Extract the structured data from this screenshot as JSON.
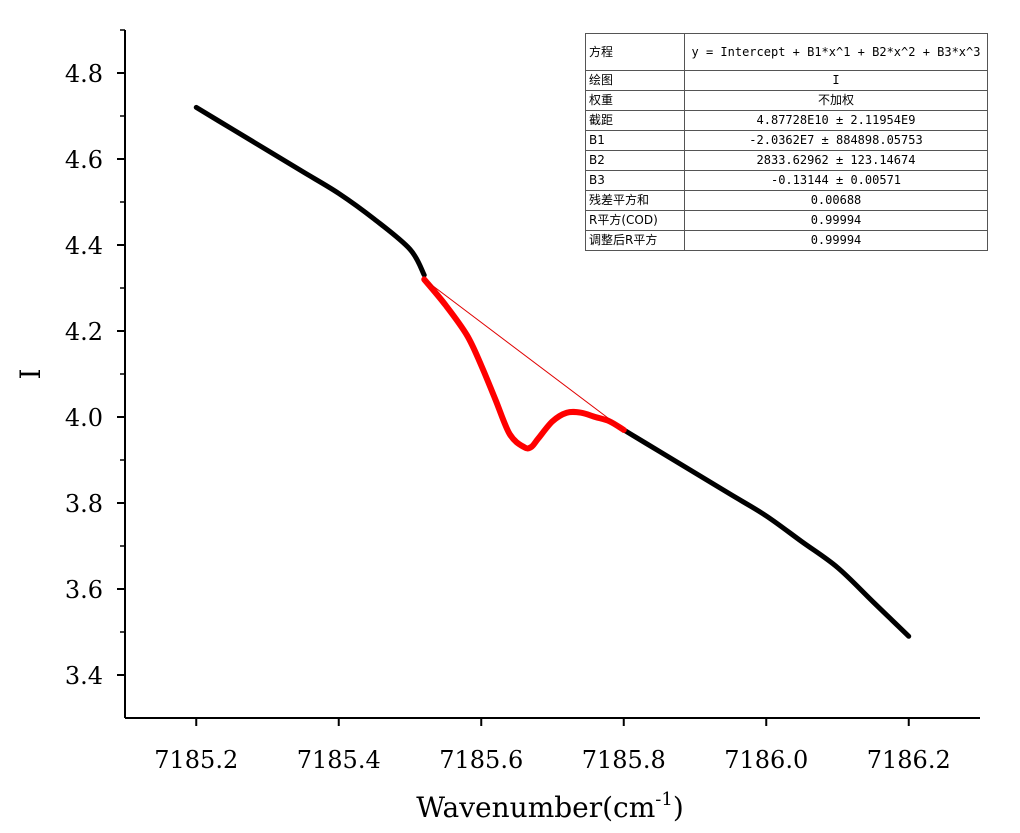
{
  "chart_data": {
    "type": "line",
    "title": "",
    "xlabel": "Wavenumber(cm",
    "xlabel_sup": "-1",
    "xlabel_close": ")",
    "ylabel": "I",
    "xlim": [
      7185.1,
      7186.3
    ],
    "ylim": [
      3.3,
      4.9
    ],
    "xticks": [
      7185.2,
      7185.4,
      7185.6,
      7185.8,
      7186.0,
      7186.2
    ],
    "xtick_labels": [
      "7185.2",
      "7185.4",
      "7185.6",
      "7185.8",
      "7186.0",
      "7186.2"
    ],
    "yticks": [
      3.4,
      3.6,
      3.8,
      4.0,
      4.2,
      4.4,
      4.6,
      4.8
    ],
    "ytick_labels": [
      "3.4",
      "3.6",
      "3.8",
      "4.0",
      "4.2",
      "4.4",
      "4.6",
      "4.8"
    ],
    "grid": false,
    "series": [
      {
        "role": "data",
        "color": "#000000",
        "x": [
          7185.2,
          7185.25,
          7185.3,
          7185.35,
          7185.4,
          7185.45,
          7185.5,
          7185.52,
          7185.8,
          7185.85,
          7185.9,
          7185.95,
          7186.0,
          7186.05,
          7186.1,
          7186.15,
          7186.2
        ],
        "y": [
          4.72,
          4.67,
          4.62,
          4.57,
          4.52,
          4.46,
          4.39,
          4.33,
          3.97,
          3.92,
          3.87,
          3.82,
          3.77,
          3.71,
          3.65,
          3.57,
          3.49
        ]
      },
      {
        "role": "highlight",
        "color": "#ff0000",
        "x": [
          7185.52,
          7185.55,
          7185.58,
          7185.6,
          7185.62,
          7185.64,
          7185.66,
          7185.67,
          7185.68,
          7185.7,
          7185.72,
          7185.74,
          7185.76,
          7185.78,
          7185.8
        ],
        "y": [
          4.32,
          4.26,
          4.19,
          4.12,
          4.04,
          3.96,
          3.93,
          3.93,
          3.95,
          3.99,
          4.01,
          4.01,
          4.0,
          3.99,
          3.97
        ]
      },
      {
        "role": "baseline-fit",
        "color": "#e00000",
        "x": [
          7185.2,
          7185.3,
          7185.4,
          7185.5,
          7185.6,
          7185.7,
          7185.8,
          7185.9,
          7186.0,
          7186.1,
          7186.2
        ],
        "y": [
          4.72,
          4.62,
          4.52,
          4.39,
          4.2,
          4.08,
          3.97,
          3.87,
          3.77,
          3.65,
          3.49
        ]
      }
    ]
  },
  "fit_table": [
    {
      "key": "方程",
      "value": "y = Intercept + B1*x^1 + B2*x^2 + B3*x^3"
    },
    {
      "key": "绘图",
      "value": "I"
    },
    {
      "key": "权重",
      "value": "不加权"
    },
    {
      "key": "截距",
      "value": "4.87728E10 ± 2.11954E9"
    },
    {
      "key": "B1",
      "value": "-2.0362E7 ± 884898.05753"
    },
    {
      "key": "B2",
      "value": "2833.62962 ± 123.14674"
    },
    {
      "key": "B3",
      "value": "-0.13144 ± 0.00571"
    },
    {
      "key": "残差平方和",
      "value": "0.00688"
    },
    {
      "key": "R平方(COD)",
      "value": "0.99994"
    },
    {
      "key": "调整后R平方",
      "value": "0.99994"
    }
  ]
}
